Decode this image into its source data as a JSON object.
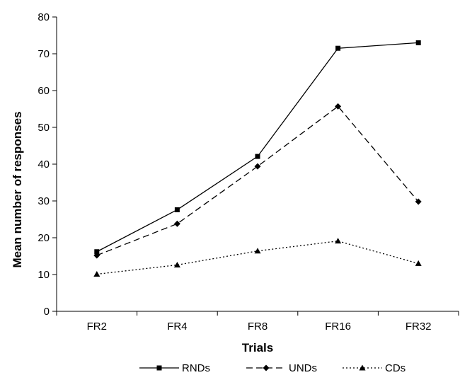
{
  "chart_data": {
    "type": "line",
    "categories": [
      "FR2",
      "FR4",
      "FR8",
      "FR16",
      "FR32"
    ],
    "series": [
      {
        "name": "RNDs",
        "values": [
          16.2,
          27.6,
          42.1,
          71.5,
          73.0
        ],
        "style": "solid",
        "marker": "square"
      },
      {
        "name": "UNDs",
        "values": [
          15.2,
          23.8,
          39.4,
          55.7,
          29.8
        ],
        "style": "dashed",
        "marker": "diamond"
      },
      {
        "name": "CDs",
        "values": [
          10.1,
          12.6,
          16.4,
          19.1,
          13.0
        ],
        "style": "dotted",
        "marker": "triangle"
      }
    ],
    "title": "",
    "xlabel": "Trials",
    "ylabel": "Mean number of responses",
    "ylim": [
      0,
      80
    ],
    "yticks": [
      0,
      10,
      20,
      30,
      40,
      50,
      60,
      70,
      80
    ],
    "grid": false,
    "legend_position": "bottom",
    "line_color": "#000000"
  }
}
